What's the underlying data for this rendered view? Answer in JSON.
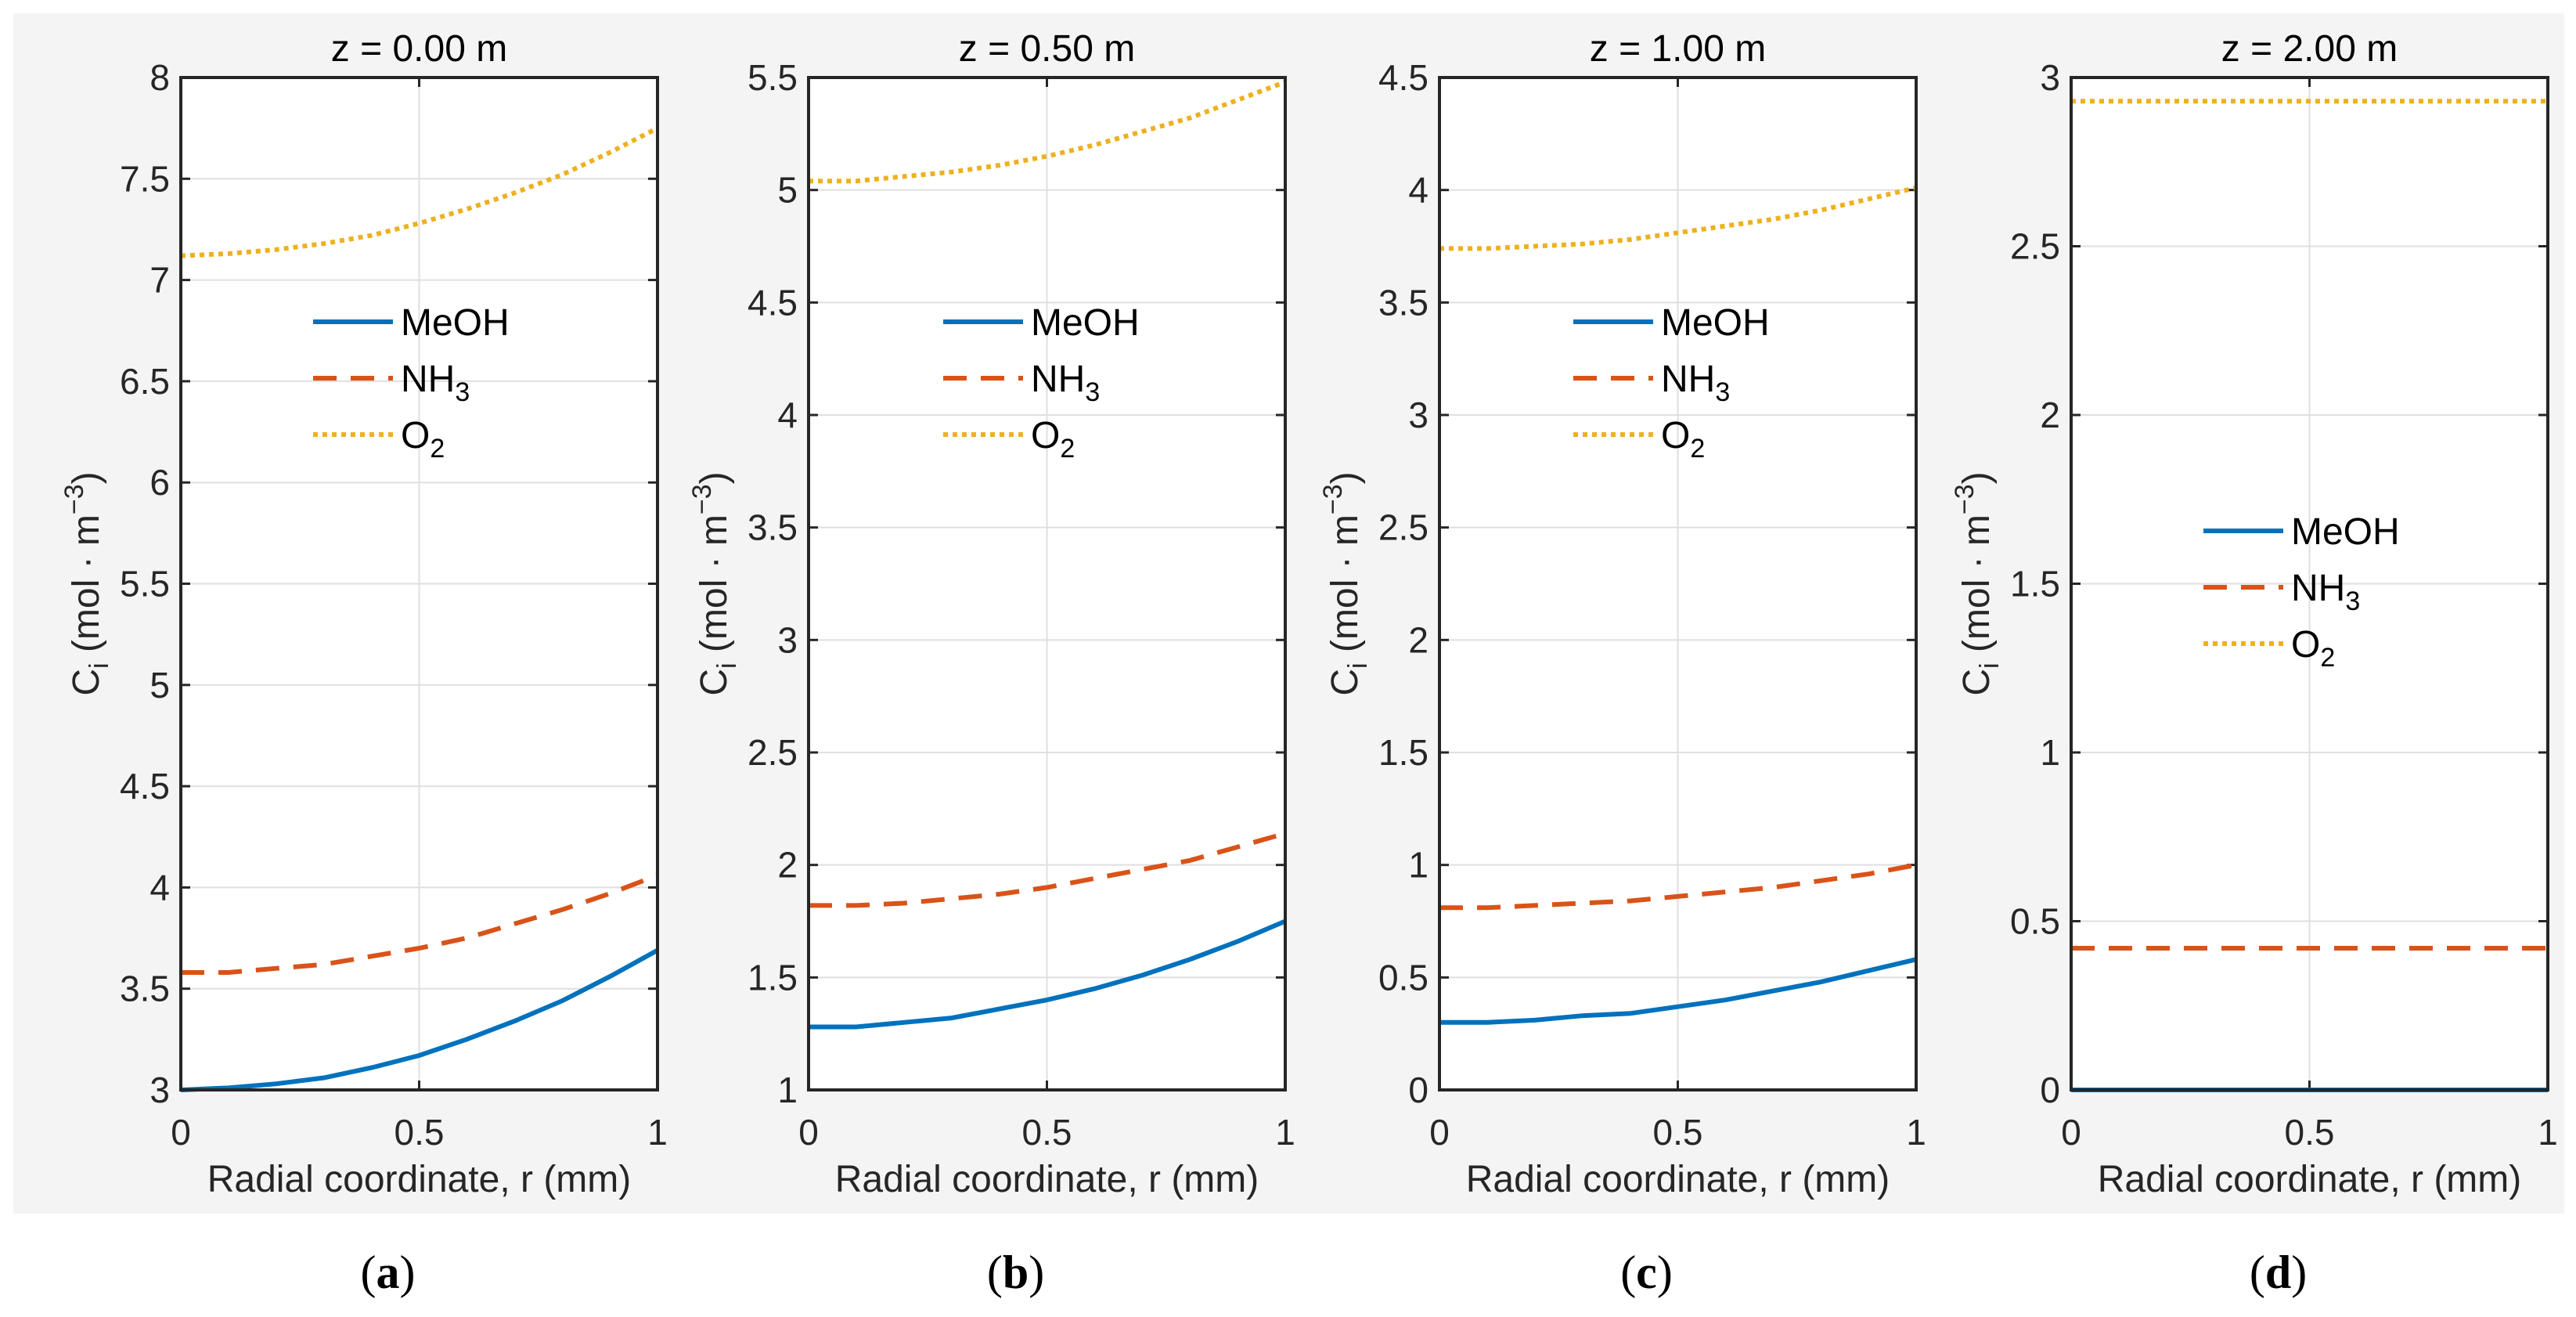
{
  "colors": {
    "MeOH": "#0072BD",
    "NH3": "#D95319",
    "O2": "#EDB120",
    "figure_bg": "#F4F4F4"
  },
  "chart_data": [
    {
      "type": "line",
      "panel_label": "a",
      "title": "z = 0.00 m",
      "xlabel": "Radial coordinate, r (mm)",
      "ylabel": {
        "base": "C",
        "sub": "i",
        "unit": "  (mol · m",
        "sup": "−3",
        "close": ")"
      },
      "xlim": [
        0,
        1
      ],
      "ylim": [
        3,
        8
      ],
      "xticks": [
        "0",
        "0.5",
        "1"
      ],
      "yticks": [
        "3",
        "3.5",
        "4",
        "4.5",
        "5",
        "5.5",
        "6",
        "6.5",
        "7",
        "7.5",
        "8"
      ],
      "grid": true,
      "legend_position": "upper-center",
      "x": [
        0,
        0.1,
        0.2,
        0.3,
        0.4,
        0.5,
        0.6,
        0.7,
        0.8,
        0.9,
        1.0
      ],
      "series": [
        {
          "name": "MeOH",
          "label": "MeOH",
          "sub": "",
          "style": "solid",
          "values": [
            3.0,
            3.01,
            3.03,
            3.06,
            3.11,
            3.17,
            3.25,
            3.34,
            3.44,
            3.56,
            3.69
          ]
        },
        {
          "name": "NH3",
          "label": "NH",
          "sub": "3",
          "style": "dashed",
          "values": [
            3.58,
            3.58,
            3.6,
            3.62,
            3.66,
            3.7,
            3.75,
            3.82,
            3.89,
            3.97,
            4.06
          ]
        },
        {
          "name": "O2",
          "label": "O",
          "sub": "2",
          "style": "dotted",
          "values": [
            7.12,
            7.13,
            7.15,
            7.18,
            7.22,
            7.28,
            7.35,
            7.43,
            7.52,
            7.63,
            7.75
          ]
        }
      ]
    },
    {
      "type": "line",
      "panel_label": "b",
      "title": "z = 0.50 m",
      "xlabel": "Radial coordinate, r (mm)",
      "ylabel": {
        "base": "C",
        "sub": "i",
        "unit": "  (mol · m",
        "sup": "−3",
        "close": ")"
      },
      "xlim": [
        0,
        1
      ],
      "ylim": [
        1,
        5.5
      ],
      "xticks": [
        "0",
        "0.5",
        "1"
      ],
      "yticks": [
        "1",
        "1.5",
        "2",
        "2.5",
        "3",
        "3.5",
        "4",
        "4.5",
        "5",
        "5.5"
      ],
      "grid": true,
      "legend_position": "upper-center",
      "x": [
        0,
        0.1,
        0.2,
        0.3,
        0.4,
        0.5,
        0.6,
        0.7,
        0.8,
        0.9,
        1.0
      ],
      "series": [
        {
          "name": "MeOH",
          "label": "MeOH",
          "sub": "",
          "style": "solid",
          "values": [
            1.28,
            1.28,
            1.3,
            1.32,
            1.36,
            1.4,
            1.45,
            1.51,
            1.58,
            1.66,
            1.75
          ]
        },
        {
          "name": "NH3",
          "label": "NH",
          "sub": "3",
          "style": "dashed",
          "values": [
            1.82,
            1.82,
            1.83,
            1.85,
            1.87,
            1.9,
            1.94,
            1.98,
            2.02,
            2.08,
            2.14
          ]
        },
        {
          "name": "O2",
          "label": "O",
          "sub": "2",
          "style": "dotted",
          "values": [
            5.04,
            5.04,
            5.06,
            5.08,
            5.11,
            5.15,
            5.2,
            5.26,
            5.32,
            5.4,
            5.48
          ]
        }
      ]
    },
    {
      "type": "line",
      "panel_label": "c",
      "title": "z = 1.00 m",
      "xlabel": "Radial coordinate, r (mm)",
      "ylabel": {
        "base": "C",
        "sub": "i",
        "unit": "  (mol · m",
        "sup": "−3",
        "close": ")"
      },
      "xlim": [
        0,
        1
      ],
      "ylim": [
        0,
        4.5
      ],
      "xticks": [
        "0",
        "0.5",
        "1"
      ],
      "yticks": [
        "0",
        "0.5",
        "1",
        "1.5",
        "2",
        "2.5",
        "3",
        "3.5",
        "4",
        "4.5"
      ],
      "grid": true,
      "legend_position": "upper-center",
      "x": [
        0,
        0.1,
        0.2,
        0.3,
        0.4,
        0.5,
        0.6,
        0.7,
        0.8,
        0.9,
        1.0
      ],
      "series": [
        {
          "name": "MeOH",
          "label": "MeOH",
          "sub": "",
          "style": "solid",
          "values": [
            0.3,
            0.3,
            0.31,
            0.33,
            0.34,
            0.37,
            0.4,
            0.44,
            0.48,
            0.53,
            0.58
          ]
        },
        {
          "name": "NH3",
          "label": "NH",
          "sub": "3",
          "style": "dashed",
          "values": [
            0.81,
            0.81,
            0.82,
            0.83,
            0.84,
            0.86,
            0.88,
            0.9,
            0.93,
            0.96,
            1.0
          ]
        },
        {
          "name": "O2",
          "label": "O",
          "sub": "2",
          "style": "dotted",
          "values": [
            3.74,
            3.74,
            3.75,
            3.76,
            3.78,
            3.81,
            3.84,
            3.87,
            3.91,
            3.96,
            4.01
          ]
        }
      ]
    },
    {
      "type": "line",
      "panel_label": "d",
      "title": "z = 2.00 m",
      "xlabel": "Radial coordinate, r (mm)",
      "ylabel": {
        "base": "C",
        "sub": "i",
        "unit": "  (mol · m",
        "sup": "−3",
        "close": ")"
      },
      "xlim": [
        0,
        1
      ],
      "ylim": [
        0,
        3
      ],
      "xticks": [
        "0",
        "0.5",
        "1"
      ],
      "yticks": [
        "0",
        "0.5",
        "1",
        "1.5",
        "2",
        "2.5",
        "3"
      ],
      "grid": true,
      "legend_position": "center",
      "x": [
        0,
        0.5,
        1.0
      ],
      "series": [
        {
          "name": "MeOH",
          "label": "MeOH",
          "sub": "",
          "style": "solid",
          "values": [
            0.0,
            0.0,
            0.0
          ]
        },
        {
          "name": "NH3",
          "label": "NH",
          "sub": "3",
          "style": "dashed",
          "values": [
            0.42,
            0.42,
            0.42
          ]
        },
        {
          "name": "O2",
          "label": "O",
          "sub": "2",
          "style": "dotted",
          "values": [
            2.93,
            2.93,
            2.93
          ]
        }
      ]
    }
  ]
}
